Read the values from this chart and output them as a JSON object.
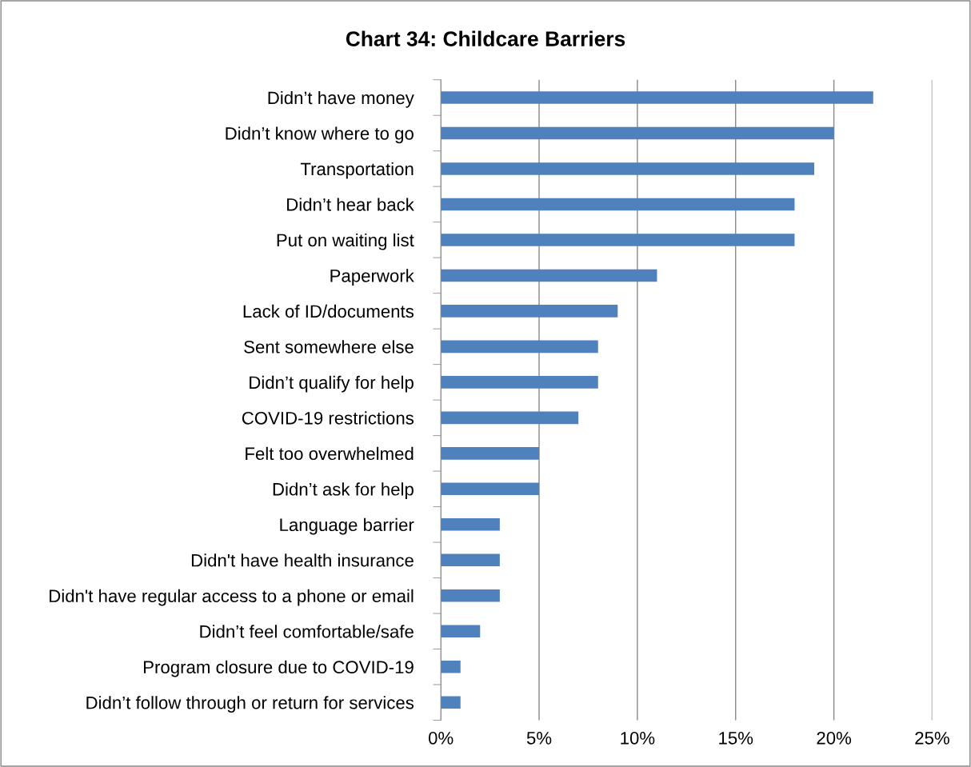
{
  "chart_data": {
    "type": "bar",
    "orientation": "horizontal",
    "title": "Chart 34: Childcare Barriers",
    "categories": [
      "Didn’t have money",
      "Didn’t know where to go",
      "Transportation",
      "Didn’t hear back",
      "Put on waiting list",
      "Paperwork",
      "Lack of ID/documents",
      "Sent somewhere else",
      "Didn’t qualify for help",
      "COVID-19 restrictions",
      "Felt too overwhelmed",
      "Didn’t ask for help",
      "Language barrier",
      "Didn't have health insurance",
      "Didn't have regular access to a phone or email",
      "Didn’t feel comfortable/safe",
      "Program closure due to COVID-19",
      "Didn’t follow through or return for services"
    ],
    "values": [
      22,
      20,
      19,
      18,
      18,
      11,
      9,
      8,
      8,
      7,
      5,
      5,
      3,
      3,
      3,
      2,
      1,
      1
    ],
    "color": "#4f81bd",
    "xlim": [
      0,
      25
    ],
    "xticks": [
      {
        "value": 0,
        "label": "0%"
      },
      {
        "value": 5,
        "label": "5%"
      },
      {
        "value": 10,
        "label": "10%"
      },
      {
        "value": 15,
        "label": "15%"
      },
      {
        "value": 20,
        "label": "20%"
      },
      {
        "value": 25,
        "label": "25%"
      }
    ],
    "grid": "x",
    "legend": false
  }
}
